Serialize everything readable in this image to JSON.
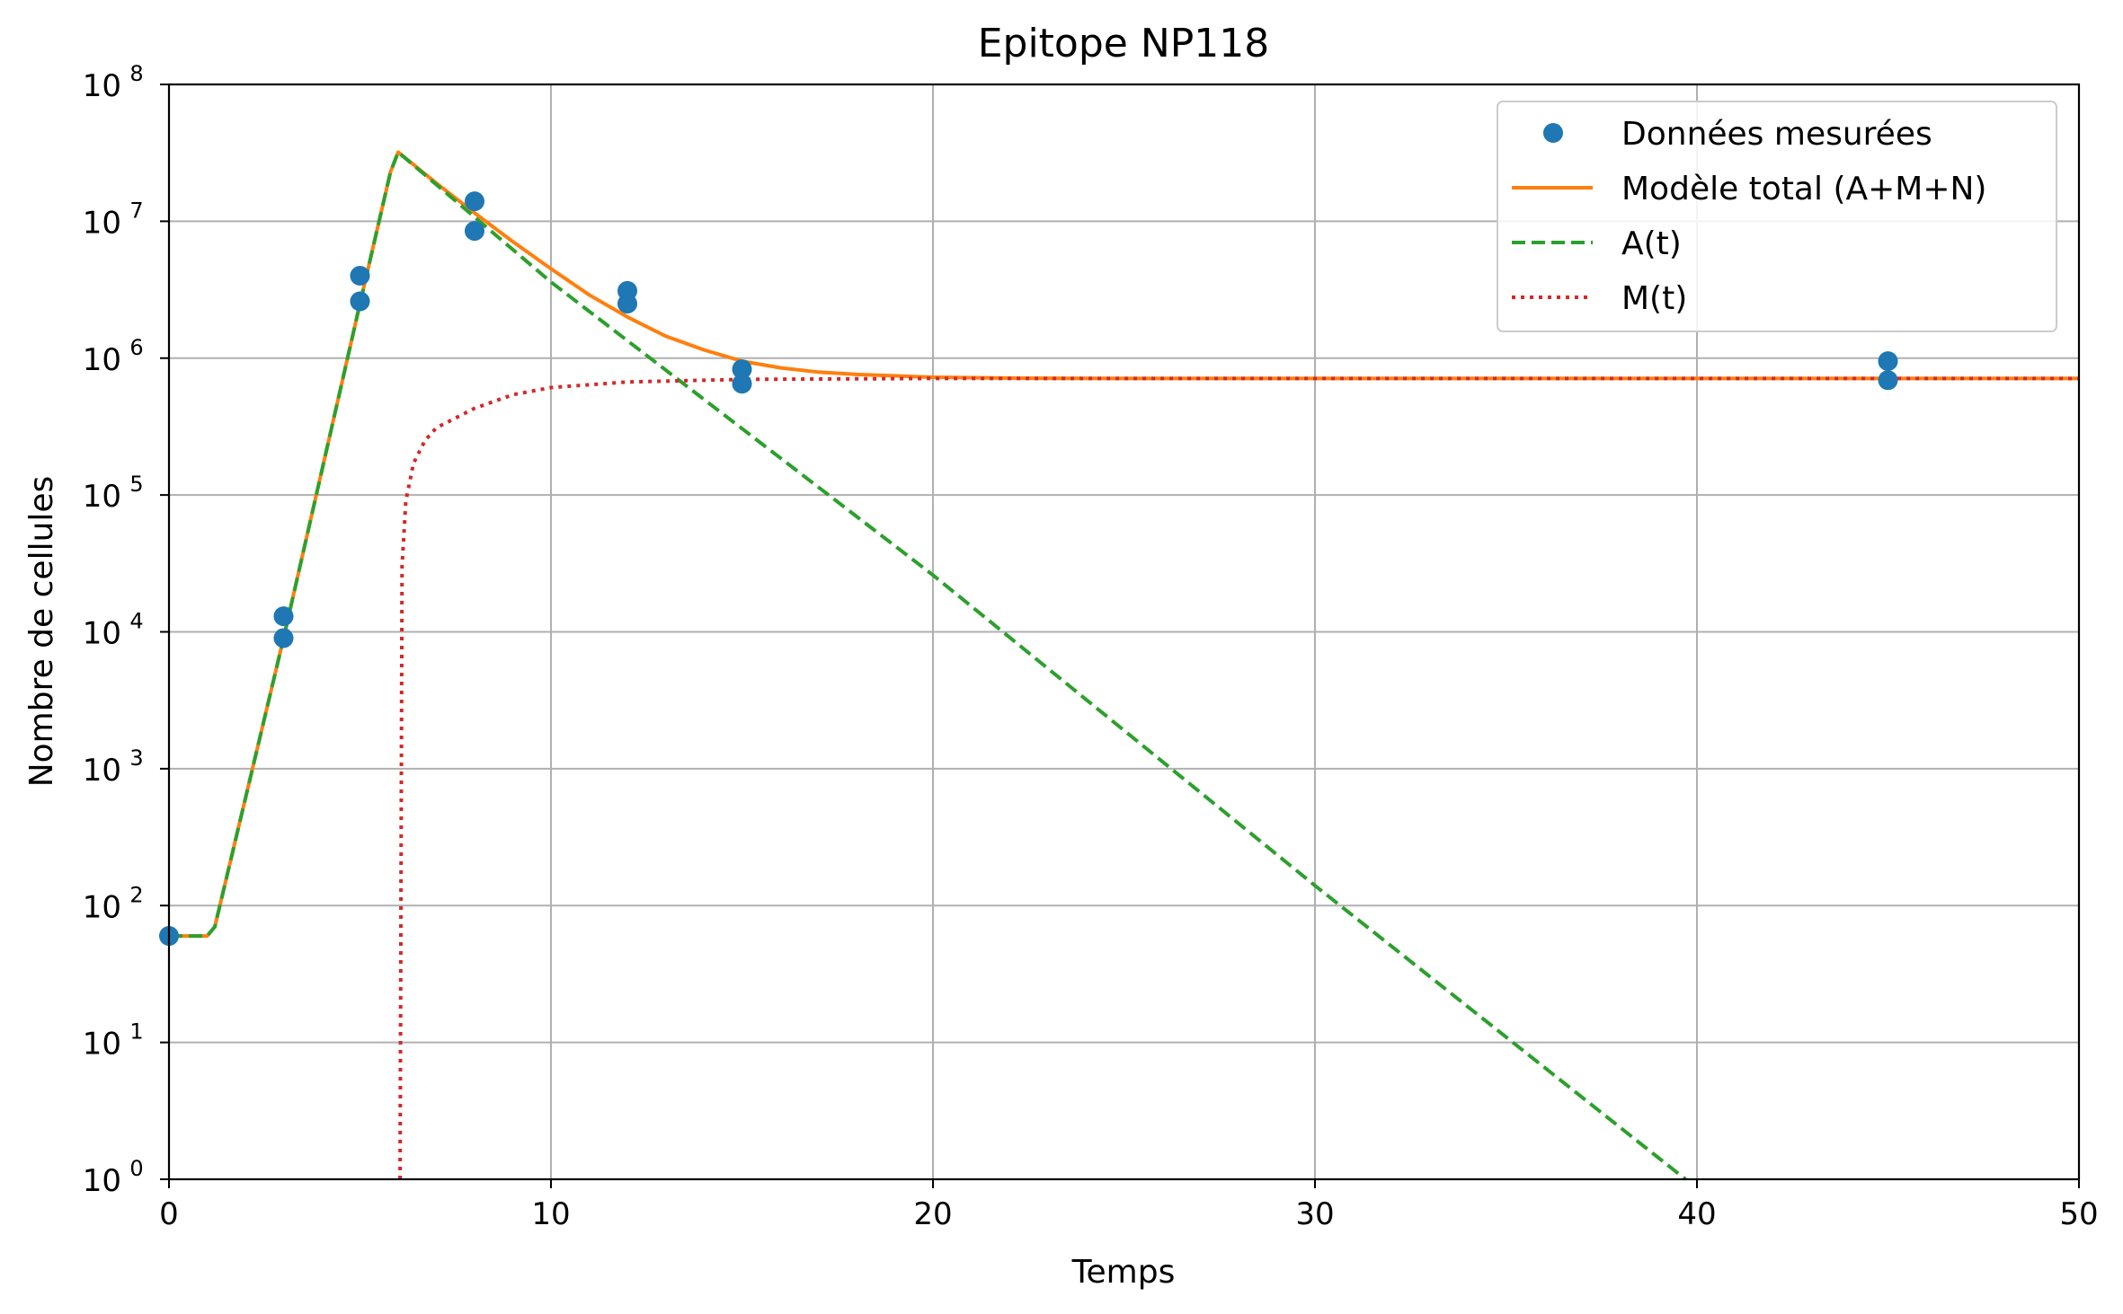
{
  "chart_data": {
    "type": "line",
    "title": "Epitope NP118",
    "xlabel": "Temps",
    "ylabel": "Nombre de cellules",
    "xlim": [
      0,
      50
    ],
    "ylim": [
      1,
      100000000
    ],
    "yscale": "log",
    "grid": true,
    "legend_position": "top-right",
    "x_ticks": [
      "0",
      "10",
      "20",
      "30",
      "40",
      "50"
    ],
    "y_ticks": [
      {
        "base": "10",
        "exp": "0"
      },
      {
        "base": "10",
        "exp": "1"
      },
      {
        "base": "10",
        "exp": "2"
      },
      {
        "base": "10",
        "exp": "3"
      },
      {
        "base": "10",
        "exp": "4"
      },
      {
        "base": "10",
        "exp": "5"
      },
      {
        "base": "10",
        "exp": "6"
      },
      {
        "base": "10",
        "exp": "7"
      },
      {
        "base": "10",
        "exp": "8"
      }
    ],
    "series": [
      {
        "name": "Données mesurées",
        "kind": "scatter",
        "color": "#1f77b4",
        "x": [
          0,
          3,
          3,
          5,
          5,
          8,
          8,
          12,
          12,
          15,
          15,
          45,
          45
        ],
        "y": [
          60,
          13000,
          9000,
          4000000,
          2600000,
          14000000,
          8500000,
          3100000,
          2500000,
          830000,
          650000,
          950000,
          690000
        ]
      },
      {
        "name": "Modèle total (A+M+N)",
        "kind": "line",
        "style": "solid",
        "color": "#ff7f0e",
        "x": [
          0,
          1,
          1.2,
          3,
          5,
          5.8,
          6,
          7,
          8,
          9,
          10,
          11,
          12,
          13,
          14,
          15,
          16,
          17,
          18,
          20,
          22,
          25,
          30,
          40,
          50
        ],
        "y": [
          60,
          60,
          70,
          9000,
          2500000,
          23000000,
          32000000,
          19000000,
          11500000,
          7100000,
          4500000,
          2900000,
          2000000,
          1450000,
          1150000,
          950000,
          850000,
          790000,
          760000,
          725000,
          715000,
          710000,
          710000,
          710000,
          710000
        ]
      },
      {
        "name": "A(t)",
        "kind": "line",
        "style": "dashed",
        "color": "#2ca02c",
        "x": [
          0,
          1,
          1.2,
          3,
          5,
          5.8,
          6,
          10,
          20,
          30,
          39.7
        ],
        "y": [
          60,
          60,
          70,
          9000,
          2500000,
          23000000,
          32000000,
          3600000,
          26000,
          140,
          1
        ]
      },
      {
        "name": "M(t)",
        "kind": "line",
        "style": "dotted",
        "color": "#d62728",
        "x": [
          6.05,
          6.1,
          6.2,
          6.4,
          6.7,
          7,
          8,
          9,
          10,
          12,
          15,
          20,
          30,
          50
        ],
        "y": [
          1,
          30000,
          90000,
          170000,
          250000,
          310000,
          430000,
          540000,
          610000,
          670000,
          700000,
          710000,
          710000,
          710000
        ]
      }
    ]
  }
}
